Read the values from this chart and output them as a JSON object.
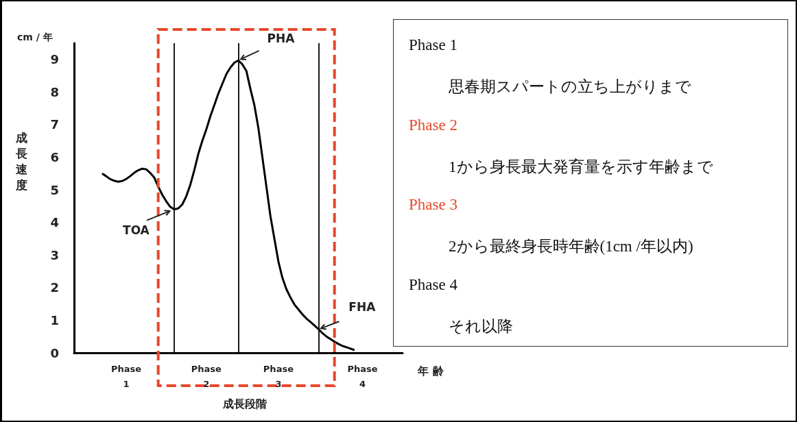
{
  "chart_data": {
    "type": "line",
    "ylabel": "成長速度",
    "xlabel": "年 齢",
    "categories": [
      null,
      null,
      null,
      null,
      null,
      null,
      null,
      null,
      null,
      null,
      null,
      null,
      null,
      null,
      null,
      null,
      null,
      null,
      null,
      null,
      null,
      null,
      null,
      null,
      null,
      null,
      null,
      null,
      null,
      null,
      null,
      null,
      null,
      null,
      null,
      null,
      null,
      null,
      null,
      null,
      null,
      null,
      null,
      null,
      null,
      null,
      null,
      null,
      null,
      null,
      null,
      null,
      null,
      null,
      null,
      null,
      null,
      null,
      null,
      null,
      null,
      null,
      null,
      null,
      null,
      null,
      null,
      null,
      null,
      null,
      null,
      null,
      null,
      null,
      null,
      null,
      null,
      null,
      null,
      null,
      null,
      null,
      null
    ],
    "series": [
      {
        "color": "#000000",
        "values": [
          null,
          null,
          null,
          null,
          null,
          null,
          null,
          5.5,
          5.42,
          5.33,
          5.28,
          5.25,
          5.27,
          5.33,
          5.42,
          5.52,
          5.6,
          5.65,
          5.63,
          5.52,
          5.38,
          5.1,
          4.85,
          4.65,
          4.48,
          4.4,
          4.43,
          4.55,
          4.8,
          5.15,
          5.6,
          6.1,
          6.5,
          6.85,
          7.25,
          7.6,
          7.95,
          8.25,
          8.55,
          8.75,
          8.9,
          8.97,
          8.85,
          8.65,
          8.1,
          7.6,
          6.9,
          6.0,
          5.1,
          4.2,
          3.5,
          2.8,
          2.3,
          1.95,
          1.7,
          1.48,
          1.33,
          1.18,
          1.05,
          0.95,
          0.84,
          0.73,
          0.6,
          0.5,
          0.42,
          0.34,
          0.27,
          0.21,
          0.17,
          0.13,
          0.08,
          null,
          null,
          null,
          null,
          null,
          null,
          null,
          null,
          null,
          null,
          null,
          null
        ]
      }
    ],
    "ylim": [
      0,
      9.5
    ],
    "yticks": [
      0,
      1,
      2,
      3,
      4,
      5,
      6,
      7,
      8,
      9
    ],
    "grid": "x",
    "annotations": [
      "cm / 年",
      "TOA",
      "PHA",
      "FHA",
      "Phase\n1",
      "Phase\n2",
      "Phase\n3",
      "Phase\n4",
      "成長段階",
      "Phase 1",
      "思春期スパートの立ち上がりまで",
      "Phase 2",
      "1から身長最大発育量を示す年齢まで",
      "Phase 3",
      "2から最終身長時年齢(1cm /年以内)",
      "Phase 4",
      "それ以降"
    ]
  }
}
